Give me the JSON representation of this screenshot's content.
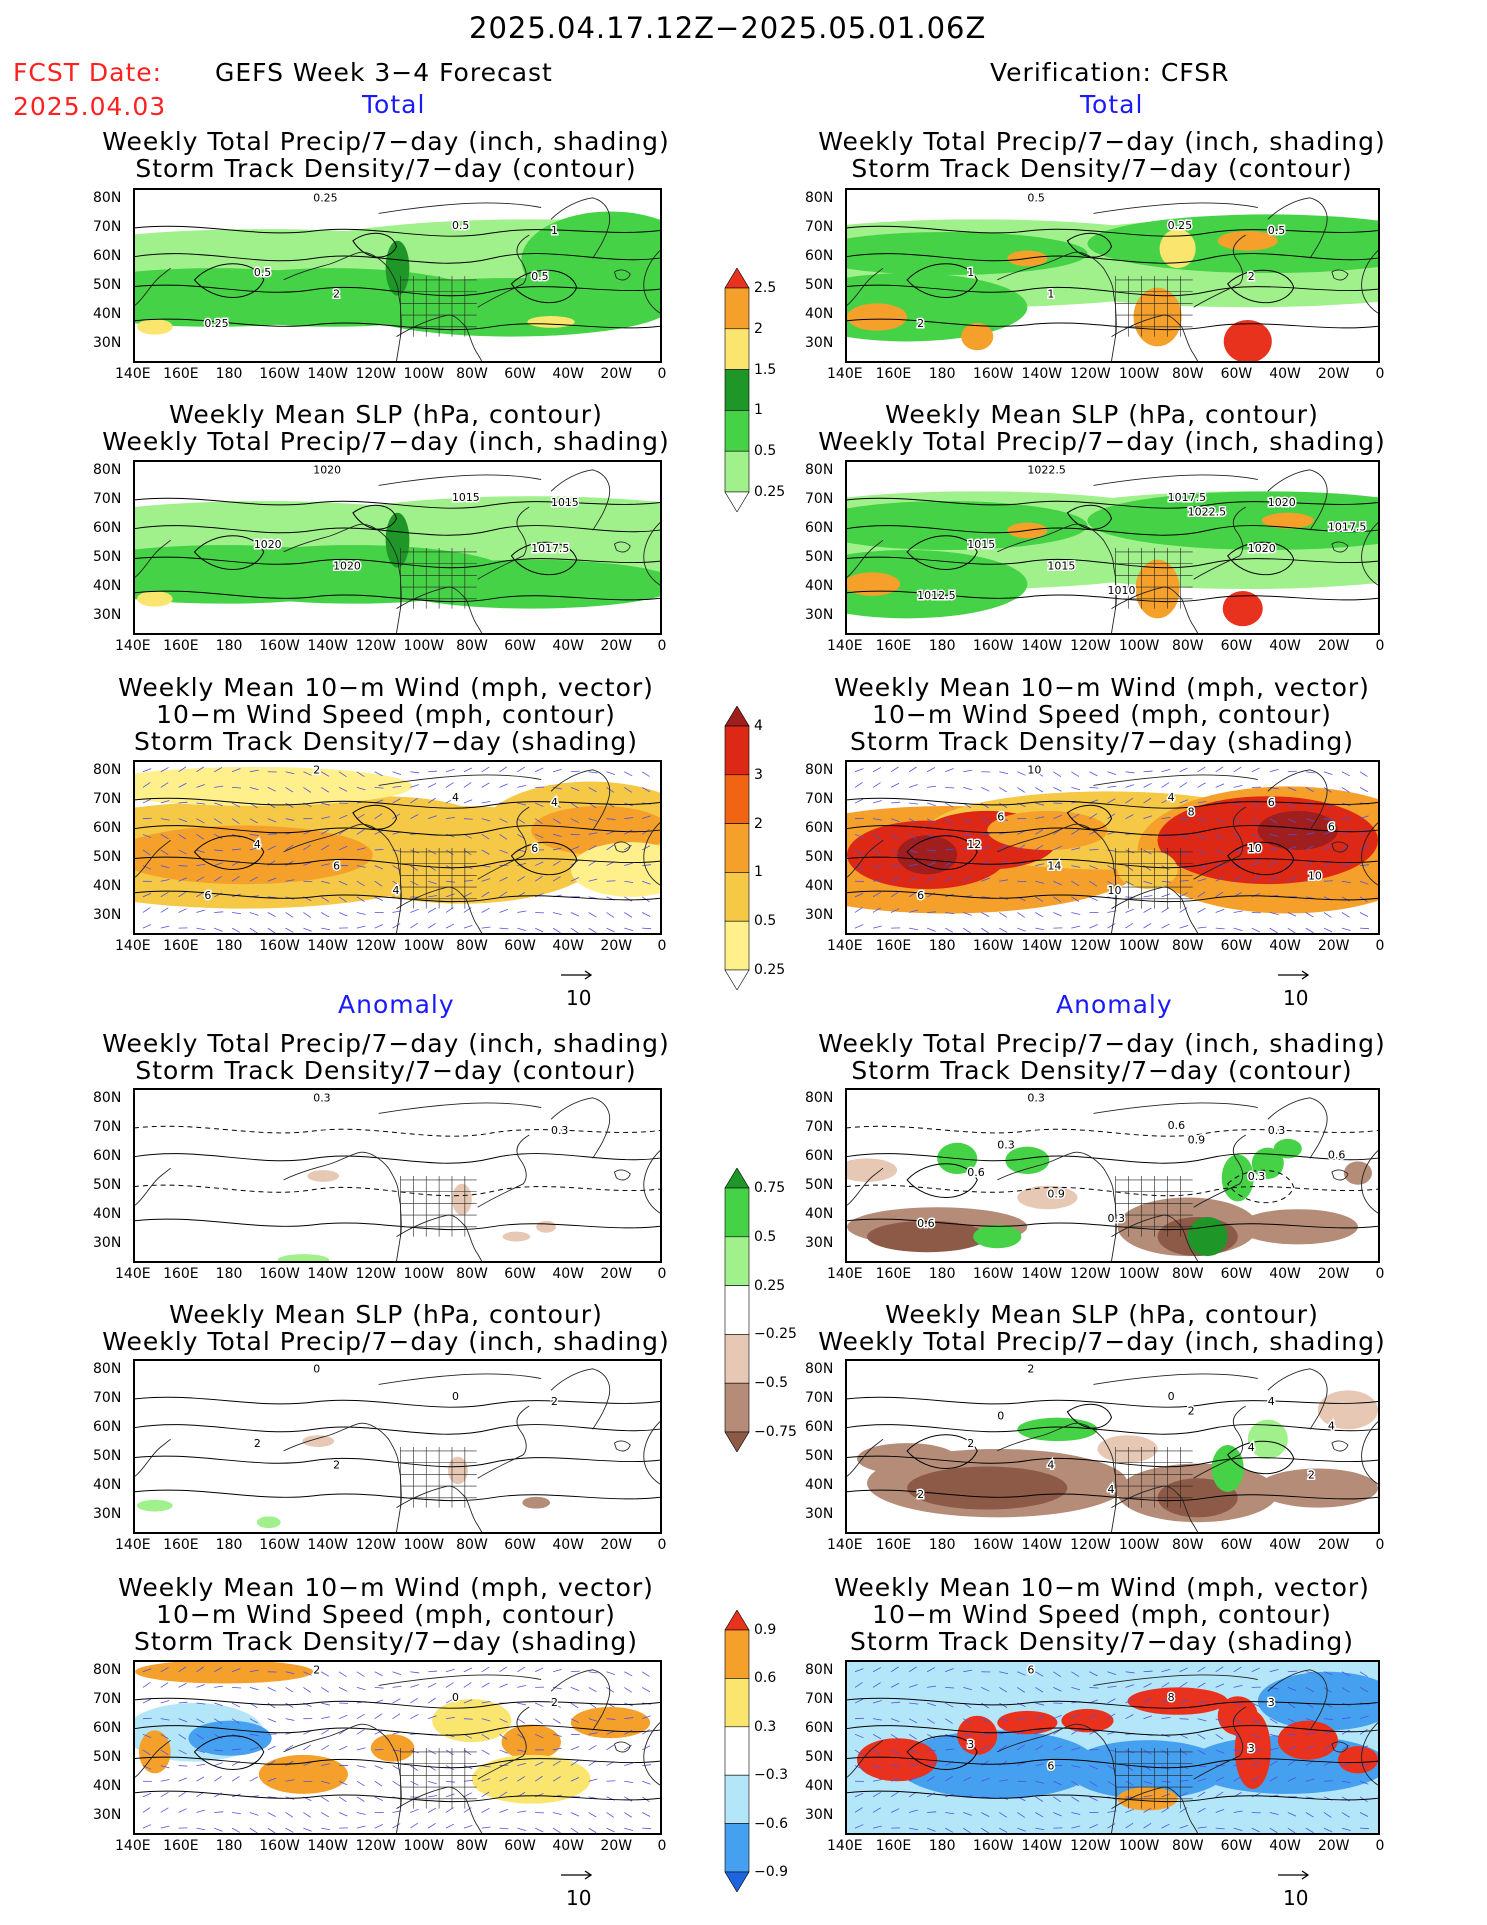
{
  "header": {
    "valid_period": "2025.04.17.12Z−2025.05.01.06Z",
    "fcst_label": "FCST Date:",
    "fcst_date": "2025.04.03",
    "left_title": "GEFS Week 3−4 Forecast",
    "right_title": "Verification: CFSR"
  },
  "sections": {
    "total": "Total",
    "anomaly": "Anomaly"
  },
  "panel_titles": {
    "precip_storm": [
      "Weekly Total Precip/7−day (inch, shading)",
      "Storm Track Density/7−day (contour)"
    ],
    "slp_precip": [
      "Weekly Mean SLP (hPa, contour)",
      "Weekly Total Precip/7−day (inch, shading)"
    ],
    "wind": [
      "Weekly Mean 10−m Wind (mph, vector)",
      "10−m Wind Speed (mph, contour)",
      "Storm Track Density/7−day (shading)"
    ]
  },
  "axes": {
    "lat_labels": [
      "80N",
      "70N",
      "60N",
      "50N",
      "40N",
      "30N"
    ],
    "lon_labels": [
      "140E",
      "160E",
      "180",
      "160W",
      "140W",
      "120W",
      "100W",
      "80W",
      "60W",
      "40W",
      "20W",
      "0"
    ]
  },
  "vector_reference": "10",
  "colorbars": {
    "total_precip": {
      "labels": [
        "2.5",
        "2",
        "1.5",
        "1",
        "0.5",
        "0.25"
      ],
      "colors": [
        "#e8321e",
        "#f5a02a",
        "#fae66e",
        "#1e9628",
        "#46d246",
        "#a0f08c",
        "#ffffff"
      ]
    },
    "total_storm": {
      "labels": [
        "4",
        "3",
        "2",
        "1",
        "0.5",
        "0.25"
      ],
      "colors": [
        "#a01e1e",
        "#dc2814",
        "#f06414",
        "#f5a02a",
        "#f5c846",
        "#fff08c",
        "#ffffff"
      ]
    },
    "anom_precip": {
      "labels": [
        "0.75",
        "0.5",
        "0.25",
        "−0.25",
        "−0.5",
        "−0.75"
      ],
      "colors": [
        "#1e9628",
        "#46d246",
        "#a0f08c",
        "#ffffff",
        "#e6c8b4",
        "#b48c78",
        "#8c5a46"
      ]
    },
    "anom_storm": {
      "labels": [
        "0.9",
        "0.6",
        "0.3",
        "−0.3",
        "−0.6",
        "−0.9"
      ],
      "colors": [
        "#e8321e",
        "#f5a02a",
        "#fae66e",
        "#ffffff",
        "#b4e6fa",
        "#46a0f0",
        "#1e64dc"
      ]
    }
  },
  "contour_labels": {
    "fc_precip_total": [
      "0.25",
      "1",
      "0.5",
      "2",
      "0.5",
      "0.5",
      "0.25"
    ],
    "obs_precip_total": [
      "0.5",
      "0.5",
      "0.25",
      "1",
      "1",
      "2",
      "2"
    ],
    "fc_slp_total": [
      "1020",
      "1015",
      "1015",
      "1020",
      "1020",
      "1017.5"
    ],
    "obs_slp_total": [
      "1022.5",
      "1020",
      "1017.5",
      "1015",
      "1015",
      "1020",
      "1012.5",
      "1010",
      "1017.5",
      "1022.5"
    ],
    "fc_wind_total": [
      "2",
      "4",
      "4",
      "6",
      "4",
      "6",
      "6",
      "4"
    ],
    "obs_wind_total": [
      "10",
      "6",
      "4",
      "14",
      "12",
      "10",
      "6",
      "10",
      "6",
      "8",
      "6",
      "10"
    ],
    "fc_precip_anom": [
      "0.3",
      "0.3"
    ],
    "obs_precip_anom": [
      "0.3",
      "0.3",
      "0.6",
      "0.9",
      "0.6",
      "0.3",
      "0.6",
      "0.3",
      "0.6",
      "0.9",
      "0.3"
    ],
    "fc_slp_anom": [
      "0",
      "2",
      "0",
      "2",
      "2"
    ],
    "obs_slp_anom": [
      "2",
      "4",
      "0",
      "4",
      "2",
      "4",
      "2",
      "4",
      "4",
      "2",
      "0",
      "2"
    ],
    "fc_wind_anom": [
      "2",
      "2",
      "0"
    ],
    "obs_wind_anom": [
      "6",
      "3",
      "8",
      "6",
      "3",
      "3"
    ]
  }
}
